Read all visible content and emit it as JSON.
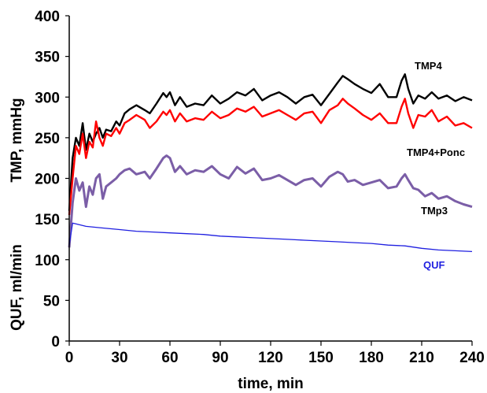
{
  "chart_data": {
    "type": "line",
    "xlabel": "time,  min",
    "ylabel_top": "TMP,  mmHg",
    "ylabel_bottom": "QUF,  ml/min",
    "xlim": [
      0,
      240
    ],
    "ylim": [
      0,
      400
    ],
    "xticks": [
      "0",
      "30",
      "60",
      "90",
      "120",
      "150",
      "180",
      "210",
      "240"
    ],
    "yticks": [
      "0",
      "50",
      "100",
      "150",
      "200",
      "250",
      "300",
      "350",
      "400"
    ],
    "grid": false,
    "series": [
      {
        "name": "TMP4",
        "color": "#000000",
        "x": [
          0,
          2,
          4,
          6,
          8,
          10,
          12,
          14,
          16,
          18,
          20,
          22,
          25,
          28,
          30,
          33,
          36,
          40,
          45,
          48,
          52,
          56,
          58,
          60,
          63,
          66,
          70,
          75,
          80,
          85,
          90,
          95,
          100,
          105,
          110,
          115,
          120,
          125,
          130,
          135,
          140,
          145,
          150,
          155,
          160,
          163,
          166,
          170,
          175,
          180,
          185,
          190,
          195,
          198,
          200,
          202,
          205,
          208,
          212,
          216,
          220,
          225,
          230,
          235,
          240
        ],
        "y": [
          160,
          225,
          250,
          240,
          268,
          235,
          255,
          245,
          255,
          262,
          250,
          260,
          258,
          270,
          265,
          280,
          285,
          290,
          284,
          280,
          292,
          305,
          300,
          306,
          290,
          300,
          288,
          292,
          290,
          302,
          292,
          298,
          306,
          302,
          310,
          296,
          302,
          306,
          300,
          292,
          300,
          303,
          290,
          304,
          318,
          326,
          322,
          316,
          310,
          305,
          316,
          300,
          300,
          320,
          328,
          310,
          292,
          302,
          298,
          306,
          298,
          302,
          295,
          300,
          296
        ]
      },
      {
        "name": "TMP4+Ponc",
        "color": "#ff0000",
        "x": [
          0,
          2,
          4,
          6,
          8,
          10,
          12,
          14,
          16,
          18,
          20,
          22,
          25,
          28,
          30,
          33,
          36,
          40,
          45,
          48,
          52,
          56,
          58,
          60,
          63,
          66,
          70,
          75,
          80,
          85,
          90,
          95,
          100,
          105,
          110,
          115,
          120,
          125,
          130,
          135,
          140,
          145,
          150,
          155,
          160,
          163,
          166,
          170,
          175,
          180,
          185,
          190,
          195,
          198,
          200,
          202,
          205,
          208,
          212,
          216,
          220,
          225,
          230,
          235,
          240
        ],
        "y": [
          155,
          200,
          240,
          230,
          255,
          225,
          245,
          238,
          270,
          250,
          240,
          255,
          252,
          262,
          255,
          268,
          272,
          278,
          272,
          262,
          270,
          282,
          278,
          284,
          270,
          280,
          270,
          274,
          272,
          282,
          274,
          278,
          286,
          282,
          288,
          276,
          280,
          284,
          278,
          272,
          280,
          282,
          268,
          284,
          290,
          298,
          292,
          286,
          278,
          272,
          280,
          268,
          268,
          288,
          298,
          280,
          262,
          278,
          276,
          284,
          270,
          276,
          265,
          268,
          262
        ]
      },
      {
        "name": "TMp3",
        "color": "#7b5ea7",
        "x": [
          0,
          2,
          4,
          6,
          8,
          10,
          12,
          14,
          16,
          18,
          20,
          22,
          25,
          28,
          30,
          33,
          36,
          40,
          45,
          48,
          52,
          56,
          58,
          60,
          63,
          66,
          70,
          75,
          80,
          85,
          90,
          95,
          100,
          105,
          110,
          115,
          120,
          125,
          130,
          135,
          140,
          145,
          150,
          155,
          160,
          163,
          166,
          170,
          175,
          180,
          185,
          190,
          195,
          198,
          200,
          202,
          205,
          208,
          212,
          216,
          220,
          225,
          230,
          235,
          240
        ],
        "y": [
          115,
          170,
          200,
          185,
          195,
          165,
          190,
          180,
          200,
          205,
          175,
          190,
          195,
          200,
          205,
          210,
          212,
          205,
          208,
          200,
          212,
          225,
          228,
          225,
          208,
          215,
          205,
          210,
          208,
          215,
          205,
          200,
          214,
          206,
          212,
          198,
          200,
          204,
          198,
          192,
          198,
          200,
          190,
          202,
          208,
          205,
          196,
          198,
          192,
          195,
          198,
          188,
          190,
          200,
          205,
          198,
          188,
          186,
          178,
          182,
          175,
          178,
          172,
          168,
          165
        ]
      },
      {
        "name": "QUF",
        "color": "#1f1fe0",
        "x": [
          0,
          2,
          4,
          10,
          20,
          30,
          40,
          50,
          60,
          70,
          80,
          90,
          100,
          110,
          120,
          130,
          140,
          150,
          160,
          170,
          180,
          190,
          200,
          210,
          220,
          230,
          240
        ],
        "y": [
          118,
          145,
          144,
          141,
          139,
          137,
          135,
          134,
          133,
          132,
          131,
          129,
          128,
          127,
          126,
          125,
          124,
          123,
          122,
          121,
          120,
          118,
          117,
          114,
          112,
          111,
          110
        ]
      }
    ]
  }
}
